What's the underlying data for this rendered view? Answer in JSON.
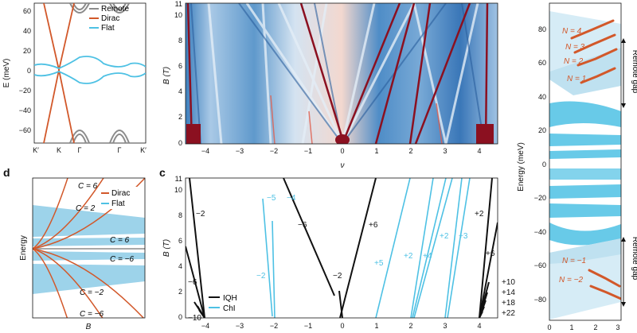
{
  "figure": {
    "panel_labels": {
      "d": "d",
      "c": "c"
    }
  },
  "band_panel": {
    "ylabel": "E (meV)",
    "yticks": [
      "60",
      "40",
      "20",
      "0",
      "−20",
      "−40",
      "−60"
    ],
    "xticks": [
      "K′",
      "K",
      "Γ",
      "Γ",
      "K′"
    ],
    "legend": [
      "Remote",
      "Dirac",
      "Flat"
    ],
    "colors": {
      "remote": "#8c8c8c",
      "dirac": "#d2582a",
      "flat": "#4ec1e4"
    }
  },
  "map_panel": {
    "ylabel": "B (T)",
    "xlabel": "ν",
    "yticks": [
      "11",
      "10",
      "8",
      "6",
      "4",
      "2",
      "0"
    ],
    "xticks": [
      "−4",
      "−3",
      "−2",
      "−1",
      "0",
      "1",
      "2",
      "3",
      "4"
    ]
  },
  "schematic_panel": {
    "ylabel": "Energy",
    "xlabel": "B",
    "legend": [
      "Dirac",
      "Flat"
    ],
    "labels": [
      "C = 6",
      "C = 2",
      "C = 6",
      "C = −6",
      "C = −2",
      "C = −6"
    ]
  },
  "fan_panel": {
    "ylabel": "B (T)",
    "yticks": [
      "11",
      "10",
      "8",
      "6",
      "4",
      "2",
      "0"
    ],
    "xticks": [
      "−4",
      "−3",
      "−2",
      "−1",
      "0",
      "1",
      "2",
      "3",
      "4"
    ],
    "legend": [
      "IQH",
      "ChI"
    ],
    "colors": {
      "iqh": "#111111",
      "chi": "#4ec1e4"
    },
    "black_labels": [
      "−2",
      "−6",
      "+6",
      "−2",
      "−6",
      "−10",
      "+2",
      "+6",
      "+10",
      "+14",
      "+18",
      "+22"
    ],
    "blue_labels": [
      "−5",
      "−4",
      "−2",
      "+5",
      "+2",
      "+4",
      "+2",
      "+3"
    ]
  },
  "spectrum_panel": {
    "ylabel": "Energy (meV)",
    "yticks": [
      "80",
      "60",
      "40",
      "20",
      "0",
      "−20",
      "−40",
      "−60",
      "−80"
    ],
    "xticks": [
      "0",
      "1",
      "2",
      "3"
    ],
    "gap_label": "Remote gap",
    "n_labels_top": [
      "N = 4",
      "N = 3",
      "N = 2",
      "N = 1"
    ],
    "n_labels_bottom": [
      "N = −1",
      "N = −2"
    ]
  }
}
